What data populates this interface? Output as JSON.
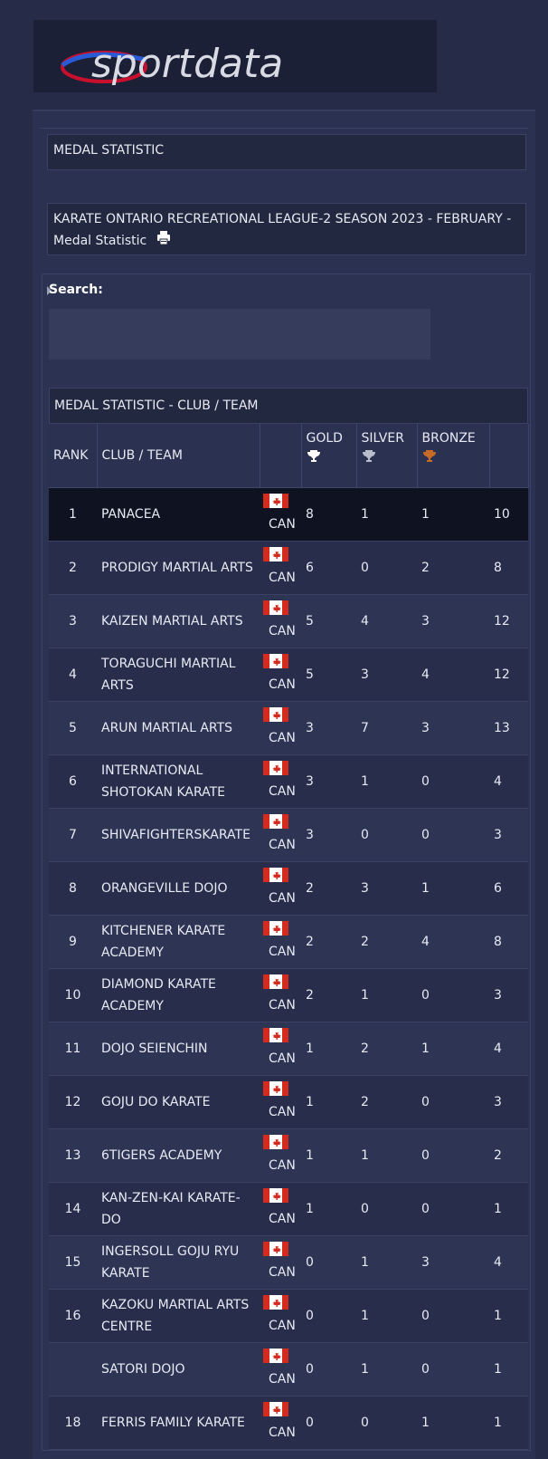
{
  "logo": {
    "text": "sportdata"
  },
  "section_header": {
    "title": "MEDAL STATISTIC"
  },
  "event": {
    "title": "KARATE ONTARIO RECREATIONAL LEAGUE-2 SEASON 2023 - FEBRUARY - Medal Statistic",
    "print_icon": "printer-icon"
  },
  "search": {
    "label": "Search:",
    "value": ""
  },
  "table": {
    "title": "MEDAL STATISTIC - CLUB / TEAM",
    "headers": {
      "rank": "RANK",
      "club": "CLUB / TEAM",
      "gold": "GOLD",
      "silver": "SILVER",
      "bronze": "BRONZE"
    },
    "medal_colors": {
      "gold": "#ffffff",
      "silver": "#b9bccb",
      "bronze": "#c66a2a"
    },
    "rows": [
      {
        "rank": "1",
        "club": "PANACEA",
        "country": "CAN",
        "gold": "8",
        "silver": "1",
        "bronze": "1",
        "total": "10"
      },
      {
        "rank": "2",
        "club": "PRODIGY MARTIAL ARTS",
        "country": "CAN",
        "gold": "6",
        "silver": "0",
        "bronze": "2",
        "total": "8"
      },
      {
        "rank": "3",
        "club": "KAIZEN MARTIAL ARTS",
        "country": "CAN",
        "gold": "5",
        "silver": "4",
        "bronze": "3",
        "total": "12"
      },
      {
        "rank": "4",
        "club": "TORAGUCHI MARTIAL ARTS",
        "country": "CAN",
        "gold": "5",
        "silver": "3",
        "bronze": "4",
        "total": "12"
      },
      {
        "rank": "5",
        "club": "ARUN MARTIAL ARTS",
        "country": "CAN",
        "gold": "3",
        "silver": "7",
        "bronze": "3",
        "total": "13"
      },
      {
        "rank": "6",
        "club": "INTERNATIONAL SHOTOKAN KARATE",
        "country": "CAN",
        "gold": "3",
        "silver": "1",
        "bronze": "0",
        "total": "4"
      },
      {
        "rank": "7",
        "club": "SHIVAFIGHTERSKARATE",
        "country": "CAN",
        "gold": "3",
        "silver": "0",
        "bronze": "0",
        "total": "3"
      },
      {
        "rank": "8",
        "club": "ORANGEVILLE DOJO",
        "country": "CAN",
        "gold": "2",
        "silver": "3",
        "bronze": "1",
        "total": "6"
      },
      {
        "rank": "9",
        "club": "KITCHENER KARATE ACADEMY",
        "country": "CAN",
        "gold": "2",
        "silver": "2",
        "bronze": "4",
        "total": "8"
      },
      {
        "rank": "10",
        "club": "DIAMOND KARATE ACADEMY",
        "country": "CAN",
        "gold": "2",
        "silver": "1",
        "bronze": "0",
        "total": "3"
      },
      {
        "rank": "11",
        "club": "DOJO SEIENCHIN",
        "country": "CAN",
        "gold": "1",
        "silver": "2",
        "bronze": "1",
        "total": "4"
      },
      {
        "rank": "12",
        "club": "GOJU DO KARATE",
        "country": "CAN",
        "gold": "1",
        "silver": "2",
        "bronze": "0",
        "total": "3"
      },
      {
        "rank": "13",
        "club": "6TIGERS ACADEMY",
        "country": "CAN",
        "gold": "1",
        "silver": "1",
        "bronze": "0",
        "total": "2"
      },
      {
        "rank": "14",
        "club": "KAN-ZEN-KAI KARATE-DO",
        "country": "CAN",
        "gold": "1",
        "silver": "0",
        "bronze": "0",
        "total": "1"
      },
      {
        "rank": "15",
        "club": "INGERSOLL GOJU RYU KARATE",
        "country": "CAN",
        "gold": "0",
        "silver": "1",
        "bronze": "3",
        "total": "4"
      },
      {
        "rank": "16",
        "club": "KAZOKU MARTIAL ARTS CENTRE",
        "country": "CAN",
        "gold": "0",
        "silver": "1",
        "bronze": "0",
        "total": "1"
      },
      {
        "rank": "",
        "club": "SATORI DOJO",
        "country": "CAN",
        "gold": "0",
        "silver": "1",
        "bronze": "0",
        "total": "1"
      },
      {
        "rank": "18",
        "club": "FERRIS FAMILY KARATE",
        "country": "CAN",
        "gold": "0",
        "silver": "0",
        "bronze": "1",
        "total": "1"
      }
    ]
  }
}
